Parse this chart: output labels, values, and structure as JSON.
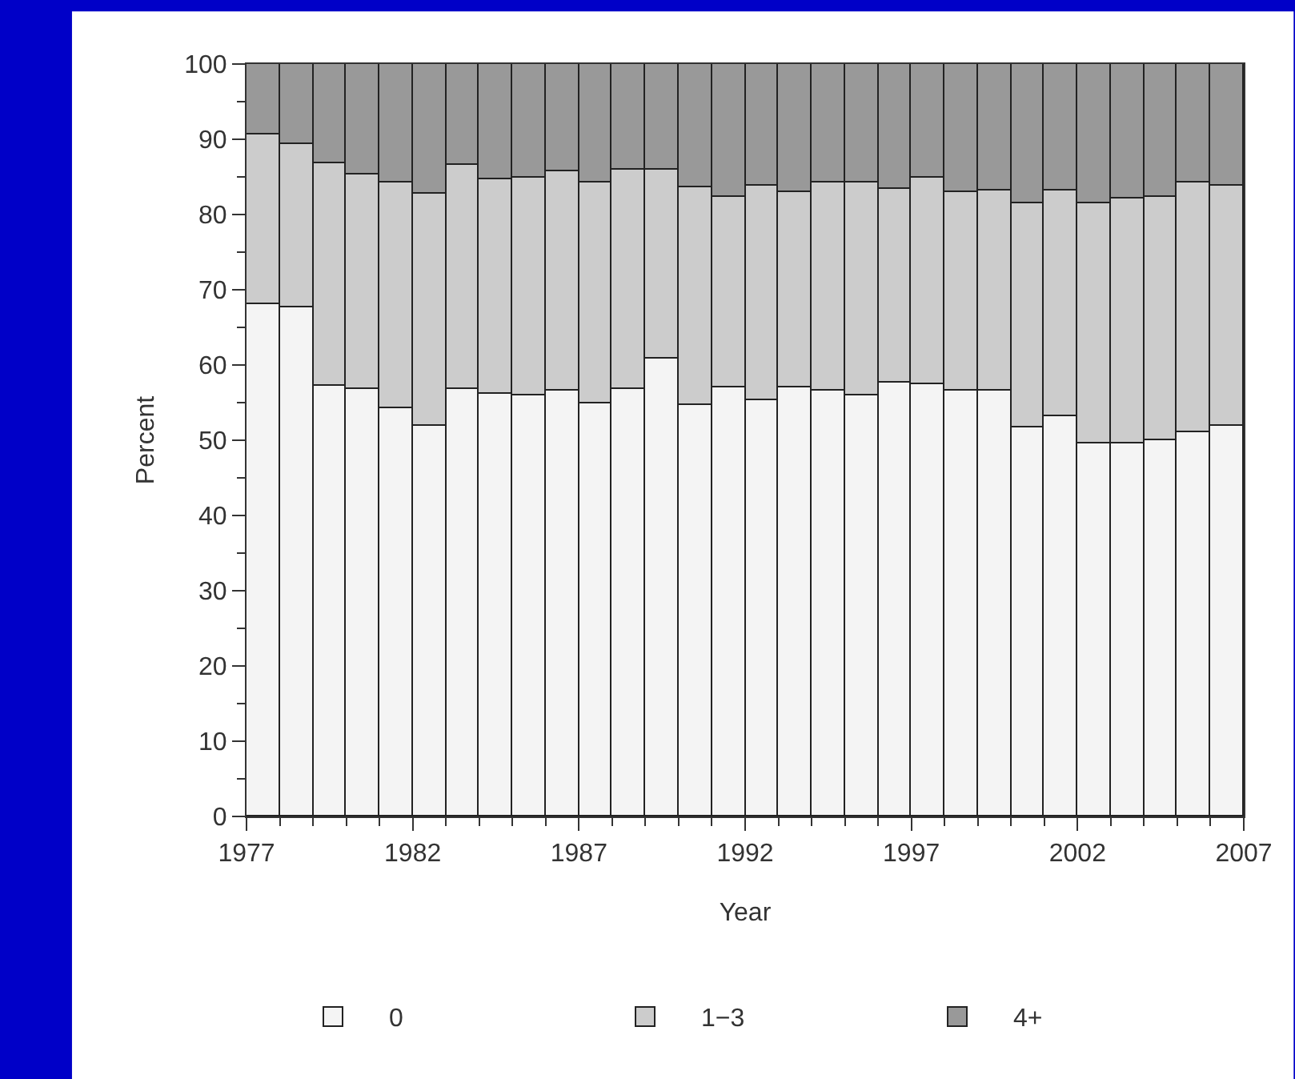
{
  "chart_data": {
    "type": "bar",
    "stacked": true,
    "xlabel": "Year",
    "ylabel": "Percent",
    "x": [
      1977.5,
      1978.5,
      1979.5,
      1980.5,
      1981.5,
      1982.5,
      1983.5,
      1984.5,
      1985.5,
      1986.5,
      1987.5,
      1988.5,
      1989.5,
      1990.5,
      1991.5,
      1992.5,
      1993.5,
      1994.5,
      1995.5,
      1996.5,
      1997.5,
      1998.5,
      1999.5,
      2000.5,
      2001.5,
      2002.5,
      2003.5,
      2004.5,
      2005.5,
      2006.5
    ],
    "series": [
      {
        "name": "0",
        "color": "#f4f4f4",
        "values": [
          68.0,
          67.7,
          57.2,
          56.8,
          54.3,
          51.9,
          56.9,
          56.2,
          56.0,
          56.5,
          55.0,
          56.9,
          60.8,
          54.7,
          57.1,
          55.3,
          57.1,
          56.5,
          56.0,
          57.7,
          57.4,
          56.5,
          56.5,
          51.6,
          53.2,
          49.6,
          49.6,
          50.0,
          51.1,
          51.9
        ]
      },
      {
        "name": "1−3",
        "color": "#cccccc",
        "values": [
          22.6,
          21.6,
          29.6,
          28.6,
          29.9,
          30.8,
          29.6,
          28.4,
          28.8,
          29.3,
          29.3,
          29.1,
          25.2,
          28.9,
          25.3,
          28.6,
          25.8,
          27.8,
          28.3,
          25.7,
          27.5,
          26.4,
          26.6,
          29.9,
          29.9,
          31.8,
          32.6,
          32.4,
          33.2,
          32.0
        ]
      },
      {
        "name": "4+",
        "color": "#999999",
        "values": [
          9.4,
          10.7,
          13.2,
          14.6,
          15.8,
          17.3,
          13.5,
          15.4,
          15.2,
          14.2,
          15.7,
          14.0,
          14.0,
          16.4,
          17.6,
          16.1,
          17.1,
          15.7,
          15.7,
          16.6,
          15.1,
          17.1,
          16.9,
          18.5,
          16.9,
          18.6,
          17.8,
          17.6,
          15.7,
          16.1
        ]
      }
    ],
    "xlim": [
      1977,
      2007
    ],
    "xticks": [
      1977,
      1982,
      1987,
      1992,
      1997,
      2002,
      2007
    ],
    "ylim": [
      0,
      100
    ],
    "yticks": [
      0,
      10,
      20,
      30,
      40,
      50,
      60,
      70,
      80,
      90,
      100
    ],
    "legend": "bottom"
  }
}
